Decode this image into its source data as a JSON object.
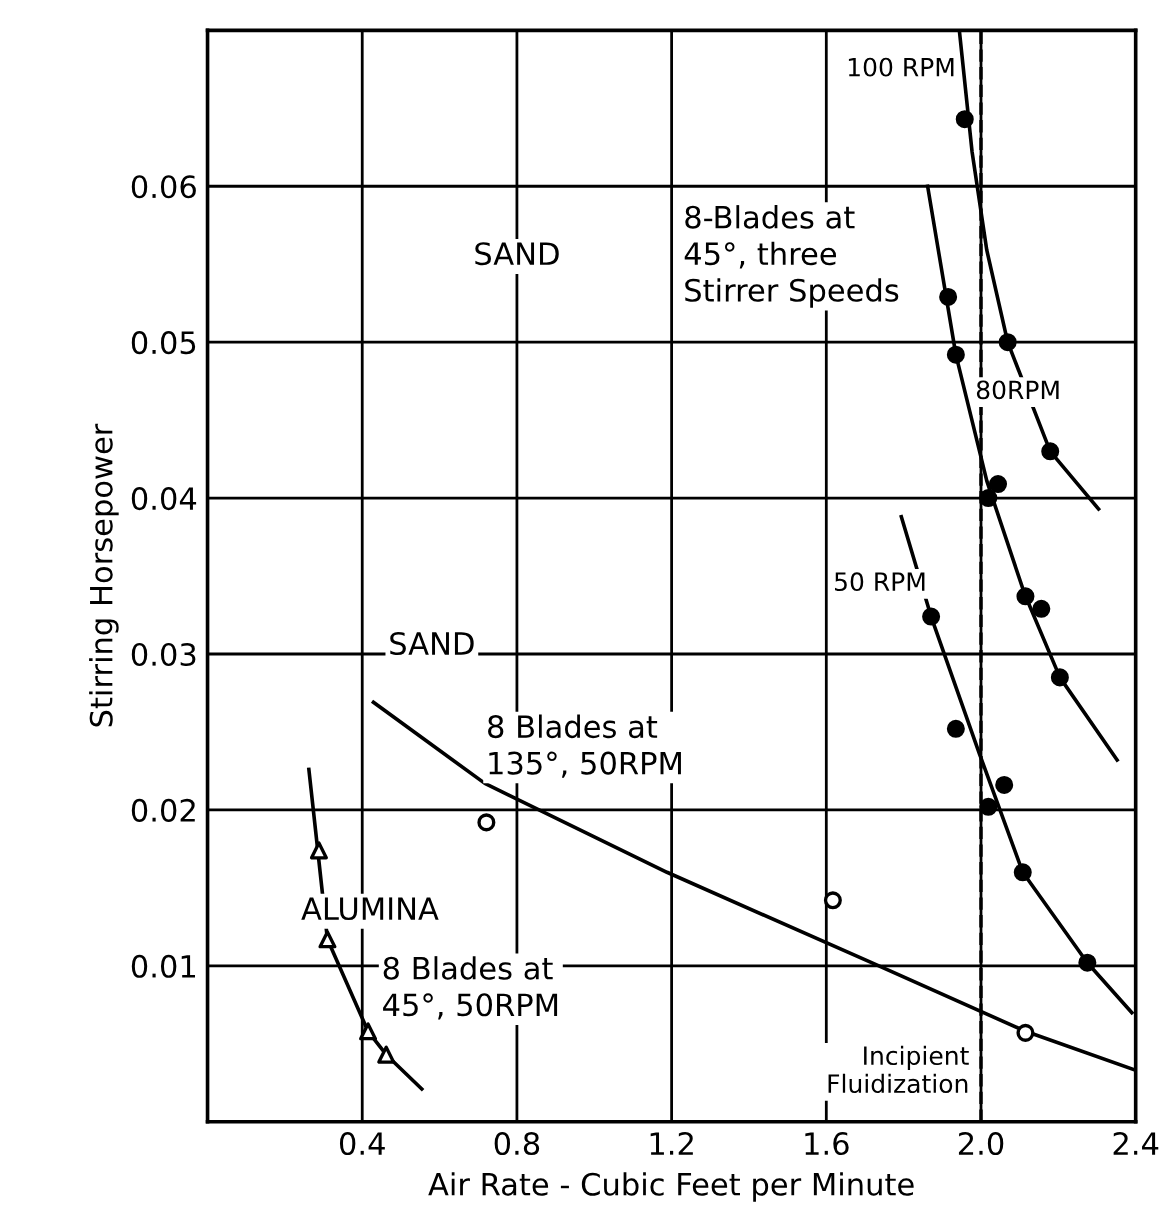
{
  "chart_data": {
    "type": "line",
    "xlabel": "Air Rate - Cubic Feet per Minute",
    "ylabel": "Stirring Horsepower",
    "xlim": [
      0,
      2.4
    ],
    "ylim": [
      0,
      0.07
    ],
    "xticks": [
      {
        "value": 0.4,
        "label": "0.4"
      },
      {
        "value": 0.8,
        "label": "0.8"
      },
      {
        "value": 1.2,
        "label": "1.2"
      },
      {
        "value": 1.6,
        "label": "1.6"
      },
      {
        "value": 2.0,
        "label": "2.0"
      },
      {
        "value": 2.4,
        "label": "2.4"
      }
    ],
    "yticks": [
      {
        "value": 0.01,
        "label": "0.01"
      },
      {
        "value": 0.02,
        "label": "0.02"
      },
      {
        "value": 0.03,
        "label": "0.03"
      },
      {
        "value": 0.04,
        "label": "0.04"
      },
      {
        "value": 0.05,
        "label": "0.05"
      },
      {
        "value": 0.06,
        "label": "0.06"
      }
    ],
    "grid": true,
    "marker": "none",
    "line_style": "solid",
    "series": [
      {
        "name": "100 RPM",
        "color": "#000000",
        "x": [
          1.944,
          1.977,
          2.015,
          2.069,
          2.179,
          2.304
        ],
        "values": [
          0.07,
          0.0622,
          0.0559,
          0.05,
          0.043,
          0.0393
        ]
      },
      {
        "type": "scatter",
        "marker": "circle",
        "color": "#000000",
        "x": [
          1.958,
          2.069,
          2.179
        ],
        "values": [
          0.0643,
          0.05,
          0.043
        ]
      },
      {
        "name": "80RPM",
        "color": "#000000",
        "x": [
          1.862,
          1.935,
          2.015,
          2.112,
          2.204,
          2.352
        ],
        "values": [
          0.06,
          0.0492,
          0.0411,
          0.0339,
          0.0285,
          0.0232
        ]
      },
      {
        "type": "scatter",
        "marker": "circle",
        "color": "#000000",
        "x": [
          1.915,
          1.935,
          2.044,
          2.019,
          2.115,
          2.156,
          2.204
        ],
        "values": [
          0.0529,
          0.0492,
          0.0409,
          0.04,
          0.0337,
          0.0329,
          0.0285
        ]
      },
      {
        "name": "50 RPM",
        "color": "#000000",
        "x": [
          1.794,
          1.871,
          1.996,
          2.108,
          2.275,
          2.39
        ],
        "values": [
          0.0388,
          0.0324,
          0.0236,
          0.016,
          0.0102,
          0.007
        ]
      },
      {
        "type": "scatter",
        "marker": "circle",
        "color": "#000000",
        "x": [
          1.871,
          1.935,
          2.06,
          2.019,
          2.108,
          2.275
        ],
        "values": [
          0.0324,
          0.0252,
          0.0216,
          0.0202,
          0.016,
          0.0102
        ]
      },
      {
        "color": "#000000",
        "x": [
          0.429,
          0.717,
          1.188,
          1.717,
          2.115,
          2.4
        ],
        "values": [
          0.0269,
          0.0217,
          0.016,
          0.0102,
          0.0058,
          0.0033
        ]
      },
      {
        "type": "scatter",
        "marker": "circle",
        "color": "#000000",
        "x": [
          0.721,
          1.617,
          2.115
        ],
        "values": [
          0.0192,
          0.0142,
          0.0057
        ]
      },
      {
        "color": "#000000",
        "x": [
          0.262,
          0.285,
          0.31,
          0.415,
          0.462,
          0.554
        ],
        "values": [
          0.0226,
          0.0174,
          0.0117,
          0.0058,
          0.0043,
          0.0021
        ]
      },
      {
        "type": "scatter",
        "marker": "triangle",
        "color": "#000000",
        "x": [
          0.288,
          0.31,
          0.415,
          0.462
        ],
        "values": [
          0.0174,
          0.0117,
          0.0058,
          0.0043
        ]
      }
    ],
    "ref_lines": [
      {
        "axis": "x",
        "value": 2.0,
        "label": "Incipient\nFluidization",
        "line_style": "dashed",
        "color": "#000000"
      }
    ],
    "annotations": [
      "SAND",
      "8-Blades at\n45°, three\nStirrer Speeds",
      "SAND",
      "8 Blades at\n135°, 50RPM",
      "ALUMINA",
      "8 Blades at\n45°, 50RPM"
    ]
  }
}
